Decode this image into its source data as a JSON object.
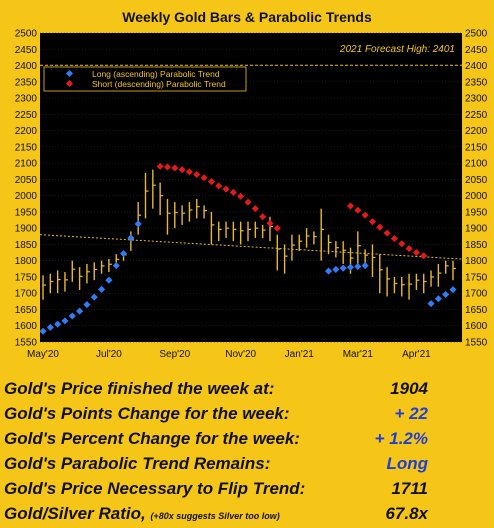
{
  "chart_data": {
    "type": "bar",
    "title": "Weekly Gold Bars & Parabolic Trends",
    "forecast_label": "2021 Forecast High: 2401",
    "forecast_high": 2401,
    "ylim": [
      1550,
      2500
    ],
    "yticks": [
      1550,
      1600,
      1650,
      1700,
      1750,
      1800,
      1850,
      1900,
      1950,
      2000,
      2050,
      2100,
      2150,
      2200,
      2250,
      2300,
      2350,
      2400,
      2450,
      2500
    ],
    "xlabels": [
      {
        "label": "May'20",
        "week": 0
      },
      {
        "label": "Jul'20",
        "week": 9
      },
      {
        "label": "Sep'20",
        "week": 18
      },
      {
        "label": "Nov'20",
        "week": 27
      },
      {
        "label": "Jan'21",
        "week": 35
      },
      {
        "label": "Mar'21",
        "week": 43
      },
      {
        "label": "Apr'21",
        "week": 51
      }
    ],
    "weeks": 57,
    "legend": {
      "long": "Long (ascending) Parabolic Trend",
      "short": "Short (descending) Parabolic Trend",
      "placement": "top-left"
    },
    "colors": {
      "background": "#000000",
      "frame": "#f5c518",
      "bars": "#e8b92b",
      "long": "#2f7cf6",
      "short": "#e21a1a",
      "trendline": "#e8b92b",
      "grid": "#333333"
    },
    "bars": [
      [
        1680,
        1755
      ],
      [
        1700,
        1760
      ],
      [
        1700,
        1770
      ],
      [
        1705,
        1765
      ],
      [
        1735,
        1800
      ],
      [
        1710,
        1780
      ],
      [
        1730,
        1790
      ],
      [
        1740,
        1795
      ],
      [
        1760,
        1800
      ],
      [
        1765,
        1805
      ],
      [
        1780,
        1820
      ],
      [
        1800,
        1830
      ],
      [
        1830,
        1890
      ],
      [
        1880,
        1980
      ],
      [
        1930,
        2070
      ],
      [
        1960,
        2080
      ],
      [
        1940,
        2040
      ],
      [
        1880,
        1990
      ],
      [
        1900,
        1980
      ],
      [
        1910,
        1970
      ],
      [
        1920,
        1980
      ],
      [
        1930,
        1990
      ],
      [
        1930,
        1970
      ],
      [
        1850,
        1950
      ],
      [
        1860,
        1920
      ],
      [
        1870,
        1920
      ],
      [
        1860,
        1920
      ],
      [
        1850,
        1920
      ],
      [
        1860,
        1920
      ],
      [
        1870,
        1920
      ],
      [
        1870,
        1910
      ],
      [
        1860,
        1935
      ],
      [
        1770,
        1880
      ],
      [
        1760,
        1850
      ],
      [
        1800,
        1880
      ],
      [
        1830,
        1880
      ],
      [
        1840,
        1900
      ],
      [
        1850,
        1890
      ],
      [
        1800,
        1960
      ],
      [
        1820,
        1880
      ],
      [
        1810,
        1860
      ],
      [
        1790,
        1860
      ],
      [
        1760,
        1840
      ],
      [
        1780,
        1890
      ],
      [
        1790,
        1835
      ],
      [
        1750,
        1850
      ],
      [
        1700,
        1820
      ],
      [
        1690,
        1780
      ],
      [
        1700,
        1750
      ],
      [
        1690,
        1750
      ],
      [
        1680,
        1760
      ],
      [
        1710,
        1760
      ],
      [
        1700,
        1760
      ],
      [
        1720,
        1770
      ],
      [
        1720,
        1790
      ],
      [
        1760,
        1800
      ],
      [
        1740,
        1800
      ]
    ],
    "trend_line": {
      "start": 1880,
      "end": 1805
    },
    "long_dots": [
      {
        "x": 0,
        "y": 1583
      },
      {
        "x": 1,
        "y": 1595
      },
      {
        "x": 2,
        "y": 1605
      },
      {
        "x": 3,
        "y": 1615
      },
      {
        "x": 4,
        "y": 1630
      },
      {
        "x": 5,
        "y": 1645
      },
      {
        "x": 6,
        "y": 1665
      },
      {
        "x": 7,
        "y": 1688
      },
      {
        "x": 8,
        "y": 1712
      },
      {
        "x": 9,
        "y": 1740
      },
      {
        "x": 10,
        "y": 1785
      },
      {
        "x": 11,
        "y": 1822
      },
      {
        "x": 12,
        "y": 1870
      },
      {
        "x": 13,
        "y": 1913
      },
      {
        "x": 39,
        "y": 1768
      },
      {
        "x": 40,
        "y": 1773
      },
      {
        "x": 41,
        "y": 1777
      },
      {
        "x": 42,
        "y": 1780
      },
      {
        "x": 43,
        "y": 1782
      },
      {
        "x": 44,
        "y": 1785
      },
      {
        "x": 53,
        "y": 1668
      },
      {
        "x": 54,
        "y": 1683
      },
      {
        "x": 55,
        "y": 1696
      },
      {
        "x": 56,
        "y": 1711
      }
    ],
    "short_dots": [
      {
        "x": 16,
        "y": 2090
      },
      {
        "x": 17,
        "y": 2088
      },
      {
        "x": 18,
        "y": 2085
      },
      {
        "x": 19,
        "y": 2080
      },
      {
        "x": 20,
        "y": 2073
      },
      {
        "x": 21,
        "y": 2065
      },
      {
        "x": 22,
        "y": 2055
      },
      {
        "x": 23,
        "y": 2043
      },
      {
        "x": 24,
        "y": 2030
      },
      {
        "x": 25,
        "y": 2020
      },
      {
        "x": 26,
        "y": 2010
      },
      {
        "x": 27,
        "y": 1998
      },
      {
        "x": 28,
        "y": 1980
      },
      {
        "x": 29,
        "y": 1960
      },
      {
        "x": 30,
        "y": 1935
      },
      {
        "x": 31,
        "y": 1915
      },
      {
        "x": 32,
        "y": 1900
      },
      {
        "x": 42,
        "y": 1968
      },
      {
        "x": 43,
        "y": 1955
      },
      {
        "x": 44,
        "y": 1940
      },
      {
        "x": 45,
        "y": 1920
      },
      {
        "x": 46,
        "y": 1903
      },
      {
        "x": 47,
        "y": 1885
      },
      {
        "x": 48,
        "y": 1868
      },
      {
        "x": 49,
        "y": 1852
      },
      {
        "x": 50,
        "y": 1837
      },
      {
        "x": 51,
        "y": 1825
      },
      {
        "x": 52,
        "y": 1815
      }
    ]
  },
  "stats": {
    "price_label": "Gold's Price finished the week at:",
    "price_value": "1904",
    "points_label": "Gold's Points Change for the week:",
    "points_value": "+ 22",
    "percent_label": "Gold's Percent Change for the week:",
    "percent_value": "+ 1.2%",
    "trend_label": "Gold's Parabolic Trend Remains:",
    "trend_value": "Long",
    "flip_label": "Gold's Price Necessary to Flip Trend:",
    "flip_value": "1711",
    "ratio_label": "Gold/Silver Ratio,",
    "ratio_note": "(+80x suggests Silver too low)",
    "ratio_value": "67.8x"
  }
}
